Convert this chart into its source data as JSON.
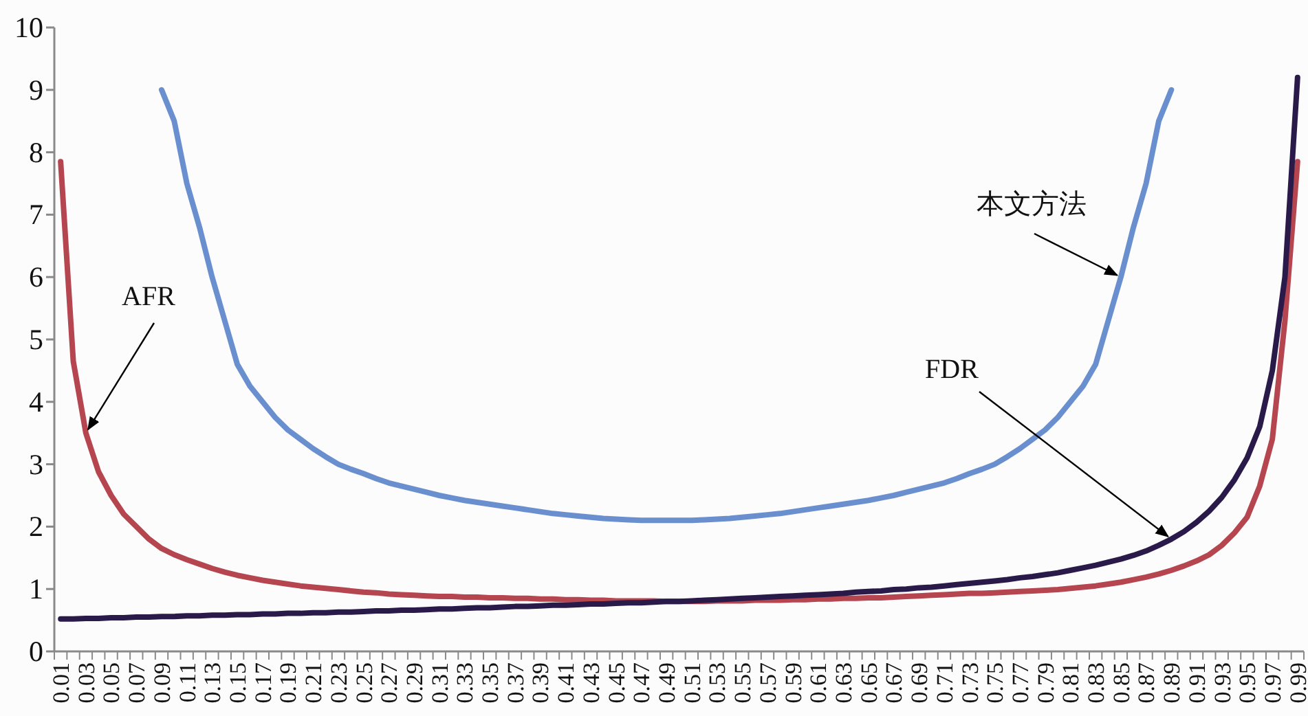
{
  "chart_data": {
    "type": "line",
    "categories": [
      "0.01",
      null,
      "0.03",
      null,
      "0.05",
      null,
      "0.07",
      null,
      "0.09",
      null,
      "0.11",
      null,
      "0.13",
      null,
      "0.15",
      null,
      "0.17",
      null,
      "0.19",
      null,
      "0.21",
      null,
      "0.23",
      null,
      "0.25",
      null,
      "0.27",
      null,
      "0.29",
      null,
      "0.31",
      null,
      "0.33",
      null,
      "0.35",
      null,
      "0.37",
      null,
      "0.39",
      null,
      "0.41",
      null,
      "0.43",
      null,
      "0.45",
      null,
      "0.47",
      null,
      "0.49",
      null,
      "0.51",
      null,
      "0.53",
      null,
      "0.55",
      null,
      "0.57",
      null,
      "0.59",
      null,
      "0.61",
      null,
      "0.63",
      null,
      "0.65",
      null,
      "0.67",
      null,
      "0.69",
      null,
      "0.71",
      null,
      "0.73",
      null,
      "0.75",
      null,
      "0.77",
      null,
      "0.79",
      null,
      "0.81",
      null,
      "0.83",
      null,
      "0.85",
      null,
      "0.87",
      null,
      "0.89",
      null,
      "0.91",
      null,
      "0.93",
      null,
      "0.95",
      null,
      "0.97",
      null,
      "0.99"
    ],
    "ylim": [
      0,
      10
    ],
    "yticks": [
      0,
      1,
      2,
      3,
      4,
      5,
      6,
      7,
      8,
      9,
      10
    ],
    "grid": false,
    "annotations": [
      {
        "text": "本文方法",
        "x": "0.85",
        "y": 6.0
      },
      {
        "text": "AFR",
        "x": "0.03",
        "y": 3.5
      },
      {
        "text": "FDR",
        "x": "0.89",
        "y": 1.8
      }
    ],
    "marker": "none",
    "line_style": "solid",
    "series": [
      {
        "color": "#6a8fcf",
        "values": [
          null,
          null,
          null,
          null,
          null,
          null,
          null,
          null,
          9.0,
          8.5,
          7.5,
          6.8,
          6.0,
          5.3,
          4.6,
          4.25,
          4.0,
          3.75,
          3.55,
          3.4,
          3.25,
          3.12,
          3.0,
          2.92,
          2.85,
          2.77,
          2.7,
          2.65,
          2.6,
          2.55,
          2.5,
          2.46,
          2.42,
          2.39,
          2.36,
          2.33,
          2.3,
          2.27,
          2.24,
          2.21,
          2.19,
          2.17,
          2.15,
          2.13,
          2.12,
          2.11,
          2.1,
          2.1,
          2.1,
          2.1,
          2.1,
          2.11,
          2.12,
          2.13,
          2.15,
          2.17,
          2.19,
          2.21,
          2.24,
          2.27,
          2.3,
          2.33,
          2.36,
          2.39,
          2.42,
          2.46,
          2.5,
          2.55,
          2.6,
          2.65,
          2.7,
          2.77,
          2.85,
          2.92,
          3.0,
          3.12,
          3.25,
          3.4,
          3.55,
          3.75,
          4.0,
          4.25,
          4.6,
          5.3,
          6.0,
          6.8,
          7.5,
          8.5,
          9.0,
          null,
          null,
          null,
          null,
          null,
          null,
          null,
          null,
          null,
          null
        ]
      },
      {
        "color": "#b5454f",
        "values": [
          7.85,
          4.65,
          3.5,
          2.88,
          2.5,
          2.2,
          2.0,
          1.8,
          1.65,
          1.55,
          1.47,
          1.4,
          1.33,
          1.27,
          1.22,
          1.18,
          1.14,
          1.11,
          1.08,
          1.05,
          1.03,
          1.01,
          0.99,
          0.97,
          0.95,
          0.94,
          0.92,
          0.91,
          0.9,
          0.89,
          0.88,
          0.88,
          0.87,
          0.87,
          0.86,
          0.86,
          0.85,
          0.85,
          0.84,
          0.84,
          0.83,
          0.83,
          0.82,
          0.82,
          0.81,
          0.81,
          0.81,
          0.81,
          0.8,
          0.8,
          0.8,
          0.8,
          0.81,
          0.81,
          0.81,
          0.82,
          0.82,
          0.82,
          0.83,
          0.83,
          0.84,
          0.84,
          0.85,
          0.85,
          0.86,
          0.86,
          0.87,
          0.88,
          0.89,
          0.9,
          0.91,
          0.92,
          0.93,
          0.93,
          0.94,
          0.95,
          0.96,
          0.97,
          0.98,
          0.99,
          1.01,
          1.03,
          1.05,
          1.08,
          1.11,
          1.15,
          1.19,
          1.24,
          1.3,
          1.37,
          1.45,
          1.55,
          1.7,
          1.9,
          2.15,
          2.65,
          3.4,
          5.3,
          7.85
        ]
      },
      {
        "color": "#2a1a4a",
        "values": [
          0.52,
          0.52,
          0.53,
          0.53,
          0.54,
          0.54,
          0.55,
          0.55,
          0.56,
          0.56,
          0.57,
          0.57,
          0.58,
          0.58,
          0.59,
          0.59,
          0.6,
          0.6,
          0.61,
          0.61,
          0.62,
          0.62,
          0.63,
          0.63,
          0.64,
          0.65,
          0.65,
          0.66,
          0.66,
          0.67,
          0.68,
          0.68,
          0.69,
          0.7,
          0.7,
          0.71,
          0.72,
          0.72,
          0.73,
          0.74,
          0.74,
          0.75,
          0.76,
          0.76,
          0.77,
          0.78,
          0.78,
          0.79,
          0.8,
          0.8,
          0.81,
          0.82,
          0.83,
          0.84,
          0.85,
          0.86,
          0.87,
          0.88,
          0.89,
          0.9,
          0.91,
          0.92,
          0.93,
          0.95,
          0.96,
          0.97,
          0.99,
          1.0,
          1.02,
          1.03,
          1.05,
          1.07,
          1.09,
          1.11,
          1.13,
          1.15,
          1.18,
          1.2,
          1.23,
          1.26,
          1.3,
          1.34,
          1.38,
          1.43,
          1.48,
          1.54,
          1.61,
          1.7,
          1.8,
          1.92,
          2.07,
          2.25,
          2.47,
          2.75,
          3.1,
          3.6,
          4.5,
          6.0,
          9.2
        ]
      }
    ]
  }
}
